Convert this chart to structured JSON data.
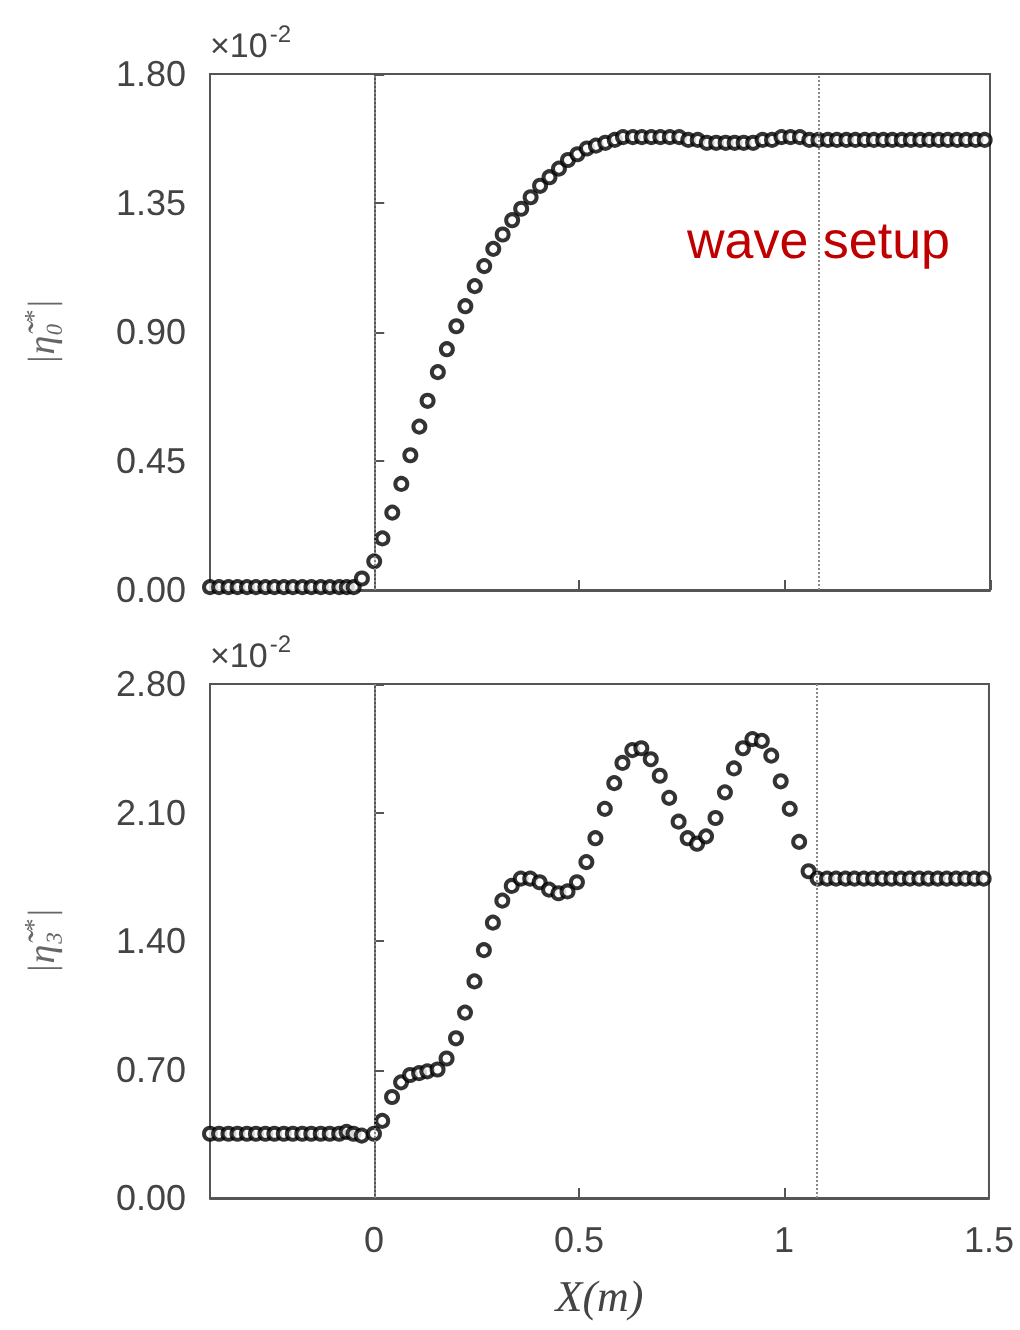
{
  "chart_data": [
    {
      "type": "scatter",
      "ylabel": "|η̃₀$^{*}$|",
      "marker": "circle",
      "tick_labels": "y",
      "annotations": [
        "×10$^{-2}$",
        "wave setup"
      ],
      "xlim": [
        -0.4,
        1.5
      ],
      "xticks": [
        0,
        0.5,
        1,
        1.5
      ],
      "ylim": [
        0,
        1.8
      ],
      "yticks": [
        {
          "value": 0,
          "label": "0.00"
        },
        {
          "value": 0.45,
          "label": "0.45"
        },
        {
          "value": 0.9,
          "label": "0.90"
        },
        {
          "value": 1.35,
          "label": "1.35"
        },
        {
          "value": 1.8,
          "label": "1.80"
        }
      ],
      "ref_lines": [
        {
          "axis": "x",
          "value": 0,
          "label": null,
          "color": "#888888",
          "line_style": "dotted"
        },
        {
          "axis": "x",
          "value": 1.085,
          "label": null,
          "color": "#888888",
          "line_style": "dotted"
        }
      ],
      "series": [
        {
          "color": "#000000",
          "x": [
            -0.4,
            -0.378,
            -0.355,
            -0.333,
            -0.31,
            -0.288,
            -0.265,
            -0.243,
            -0.22,
            -0.198,
            -0.175,
            -0.153,
            -0.13,
            -0.108,
            -0.085,
            -0.067,
            -0.05,
            -0.03,
            0.0,
            0.02,
            0.044,
            0.066,
            0.088,
            0.11,
            0.13,
            0.155,
            0.177,
            0.2,
            0.222,
            0.245,
            0.268,
            0.29,
            0.313,
            0.336,
            0.358,
            0.381,
            0.404,
            0.427,
            0.45,
            0.472,
            0.495,
            0.518,
            0.54,
            0.563,
            0.586,
            0.606,
            0.63,
            0.652,
            0.675,
            0.697,
            0.72,
            0.743,
            0.765,
            0.788,
            0.81,
            0.833,
            0.856,
            0.878,
            0.9,
            0.923,
            0.946,
            0.969,
            0.992,
            1.014,
            1.037,
            1.06,
            1.082,
            1.105,
            1.127,
            1.15,
            1.172,
            1.195,
            1.217,
            1.24,
            1.262,
            1.285,
            1.307,
            1.33,
            1.352,
            1.375,
            1.397,
            1.42,
            1.442,
            1.465,
            1.487
          ],
          "values": [
            0.01,
            0.01,
            0.01,
            0.01,
            0.01,
            0.01,
            0.01,
            0.01,
            0.01,
            0.01,
            0.01,
            0.01,
            0.01,
            0.01,
            0.01,
            0.01,
            0.01,
            0.04,
            0.1,
            0.18,
            0.27,
            0.37,
            0.47,
            0.57,
            0.66,
            0.76,
            0.84,
            0.92,
            0.99,
            1.06,
            1.13,
            1.19,
            1.24,
            1.29,
            1.33,
            1.37,
            1.41,
            1.44,
            1.47,
            1.5,
            1.52,
            1.54,
            1.55,
            1.56,
            1.57,
            1.58,
            1.58,
            1.58,
            1.58,
            1.58,
            1.58,
            1.58,
            1.57,
            1.57,
            1.56,
            1.56,
            1.56,
            1.56,
            1.56,
            1.56,
            1.57,
            1.57,
            1.58,
            1.58,
            1.58,
            1.57,
            1.57,
            1.57,
            1.57,
            1.57,
            1.57,
            1.57,
            1.57,
            1.57,
            1.57,
            1.57,
            1.57,
            1.57,
            1.57,
            1.57,
            1.57,
            1.57,
            1.57,
            1.57,
            1.57
          ]
        }
      ]
    },
    {
      "type": "scatter",
      "ylabel": "|η̃₃$^{*}$|",
      "xlabel": "X(m)",
      "marker": "circle",
      "annotations": [
        "×10$^{-2}$"
      ],
      "xlim": [
        -0.4,
        1.5
      ],
      "xticks": [
        0,
        0.5,
        1,
        1.5
      ],
      "ylim": [
        0,
        2.8
      ],
      "yticks": [
        {
          "value": 0,
          "label": "0.00"
        },
        {
          "value": 0.7,
          "label": "0.70"
        },
        {
          "value": 1.4,
          "label": "1.40"
        },
        {
          "value": 2.1,
          "label": "2.10"
        },
        {
          "value": 2.8,
          "label": "2.80"
        }
      ],
      "ref_lines": [
        {
          "axis": "x",
          "value": 0,
          "label": null,
          "color": "#888888",
          "line_style": "dotted"
        },
        {
          "axis": "x",
          "value": 1.085,
          "label": null,
          "color": "#888888",
          "line_style": "dotted"
        }
      ],
      "series": [
        {
          "color": "#000000",
          "x": [
            -0.4,
            -0.378,
            -0.355,
            -0.333,
            -0.31,
            -0.288,
            -0.265,
            -0.243,
            -0.22,
            -0.198,
            -0.175,
            -0.153,
            -0.13,
            -0.108,
            -0.085,
            -0.067,
            -0.05,
            -0.03,
            0.0,
            0.02,
            0.044,
            0.066,
            0.088,
            0.11,
            0.13,
            0.155,
            0.177,
            0.2,
            0.222,
            0.245,
            0.268,
            0.29,
            0.313,
            0.336,
            0.358,
            0.381,
            0.404,
            0.427,
            0.45,
            0.472,
            0.495,
            0.518,
            0.54,
            0.563,
            0.586,
            0.606,
            0.63,
            0.652,
            0.675,
            0.697,
            0.72,
            0.743,
            0.765,
            0.788,
            0.81,
            0.833,
            0.856,
            0.878,
            0.9,
            0.923,
            0.946,
            0.969,
            0.992,
            1.014,
            1.037,
            1.06,
            1.082,
            1.105,
            1.127,
            1.15,
            1.172,
            1.195,
            1.217,
            1.24,
            1.262,
            1.285,
            1.307,
            1.33,
            1.352,
            1.375,
            1.397,
            1.42,
            1.442,
            1.465,
            1.487
          ],
          "values": [
            0.35,
            0.35,
            0.35,
            0.35,
            0.35,
            0.35,
            0.35,
            0.35,
            0.35,
            0.35,
            0.35,
            0.35,
            0.35,
            0.35,
            0.35,
            0.36,
            0.35,
            0.34,
            0.35,
            0.42,
            0.55,
            0.63,
            0.67,
            0.68,
            0.69,
            0.7,
            0.76,
            0.87,
            1.01,
            1.18,
            1.35,
            1.5,
            1.62,
            1.7,
            1.74,
            1.74,
            1.72,
            1.68,
            1.66,
            1.67,
            1.72,
            1.83,
            1.96,
            2.12,
            2.26,
            2.37,
            2.44,
            2.45,
            2.39,
            2.3,
            2.18,
            2.05,
            1.96,
            1.93,
            1.97,
            2.07,
            2.21,
            2.34,
            2.45,
            2.5,
            2.49,
            2.41,
            2.27,
            2.12,
            1.94,
            1.78,
            1.74,
            1.74,
            1.74,
            1.74,
            1.74,
            1.74,
            1.74,
            1.74,
            1.74,
            1.74,
            1.74,
            1.74,
            1.74,
            1.74,
            1.74,
            1.74,
            1.74,
            1.74,
            1.74
          ]
        }
      ]
    }
  ]
}
